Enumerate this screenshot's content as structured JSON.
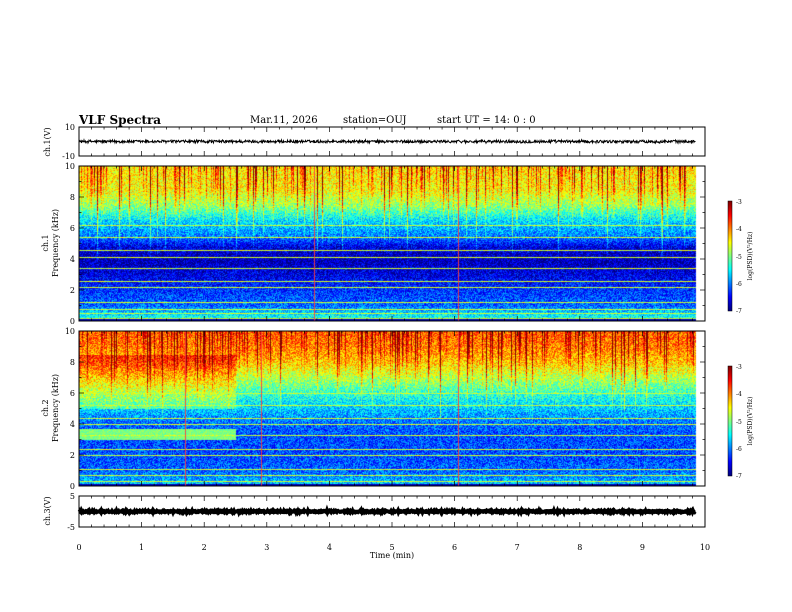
{
  "header": {
    "title": "VLF Spectra",
    "date": "Mar.11, 2026",
    "station": "station=OUJ",
    "start_ut": "start UT =  14: 0  : 0"
  },
  "colors": {
    "background": "#ffffff",
    "axes": "#000000",
    "spectrogram_low": "#000060",
    "spectrogram_high": "#ff0000"
  },
  "chart_data": [
    {
      "type": "line",
      "name": "ch.1 waveform",
      "ylabel": "ch.1(V)",
      "ylim": [
        -10,
        10
      ],
      "y_ticklabels": [
        "10",
        "-10"
      ],
      "xlim": [
        0,
        10
      ],
      "mean": 0,
      "amplitude": 1.2
    },
    {
      "type": "heatmap",
      "name": "ch.1 spectrogram",
      "ylabel": "ch.1",
      "ylabel2": "Frequency (kHz)",
      "ylim": [
        0,
        10
      ],
      "y_ticklabels": [
        "10",
        "8",
        "6",
        "4",
        "2",
        "0"
      ],
      "xlim": [
        0,
        10
      ],
      "data_end_min": 9.85,
      "colorbar": {
        "label": "log(PSD)(V²/Hz)",
        "range": [
          -7,
          -3
        ],
        "ticklabels": [
          "-3",
          "-4",
          "-5",
          "-6",
          "-7"
        ]
      },
      "power_profile": {
        "freq_khz": [
          0,
          0.5,
          1,
          2,
          3,
          4,
          4.8,
          5.5,
          6.5,
          7.5,
          8.5,
          10
        ],
        "log_psd": [
          -5.3,
          -5.6,
          -6.1,
          -6.3,
          -6.6,
          -6.8,
          -6.6,
          -6.0,
          -5.6,
          -4.9,
          -4.5,
          -4.4
        ]
      },
      "horizontal_lines_khz": [
        0.2,
        0.5,
        0.8,
        1.2,
        2.2,
        2.6,
        3.4,
        4.1,
        4.6,
        5.4,
        6.2
      ],
      "bright_vertical_lines_min": [
        3.75,
        6.05
      ]
    },
    {
      "type": "heatmap",
      "name": "ch.2 spectrogram",
      "ylabel": "ch.2",
      "ylabel2": "Frequency (kHz)",
      "ylim": [
        0,
        10
      ],
      "y_ticklabels": [
        "10",
        "8",
        "6",
        "4",
        "2",
        "0"
      ],
      "xlim": [
        0,
        10
      ],
      "data_end_min": 9.85,
      "colorbar": {
        "label": "log(PSD)(V²/Hz)",
        "range": [
          -7,
          -3
        ],
        "ticklabels": [
          "-3",
          "-4",
          "-5",
          "-6",
          "-7"
        ]
      },
      "power_profile": {
        "freq_khz": [
          0,
          0.5,
          1,
          2,
          3,
          4,
          5,
          6,
          7,
          8,
          9,
          10
        ],
        "log_psd": [
          -5.6,
          -5.9,
          -6.1,
          -6.2,
          -6.2,
          -6.1,
          -5.7,
          -5.3,
          -4.8,
          -4.3,
          -4.0,
          -3.9
        ]
      },
      "enhanced_band": {
        "t_end_min": 2.5,
        "freq_khz": [
          3.0,
          3.7
        ],
        "log_psd": -5.0
      },
      "horizontal_lines_khz": [
        0.3,
        0.7,
        1.1,
        2.0,
        2.4,
        3.3,
        4.0,
        4.4,
        5.2,
        6.0
      ],
      "bright_vertical_lines_min": [
        1.7,
        2.9,
        6.05
      ]
    },
    {
      "type": "line",
      "name": "ch.3 waveform",
      "ylabel": "ch.3(V)",
      "ylim": [
        -5,
        5
      ],
      "y_ticklabels": [
        "5",
        "-5"
      ],
      "xlim": [
        0,
        10
      ],
      "mean": 0,
      "amplitude": 0.3
    }
  ],
  "x_axis": {
    "label": "Time (min)",
    "ticklabels": [
      "0",
      "1",
      "2",
      "3",
      "4",
      "5",
      "6",
      "7",
      "8",
      "9",
      "10"
    ]
  }
}
